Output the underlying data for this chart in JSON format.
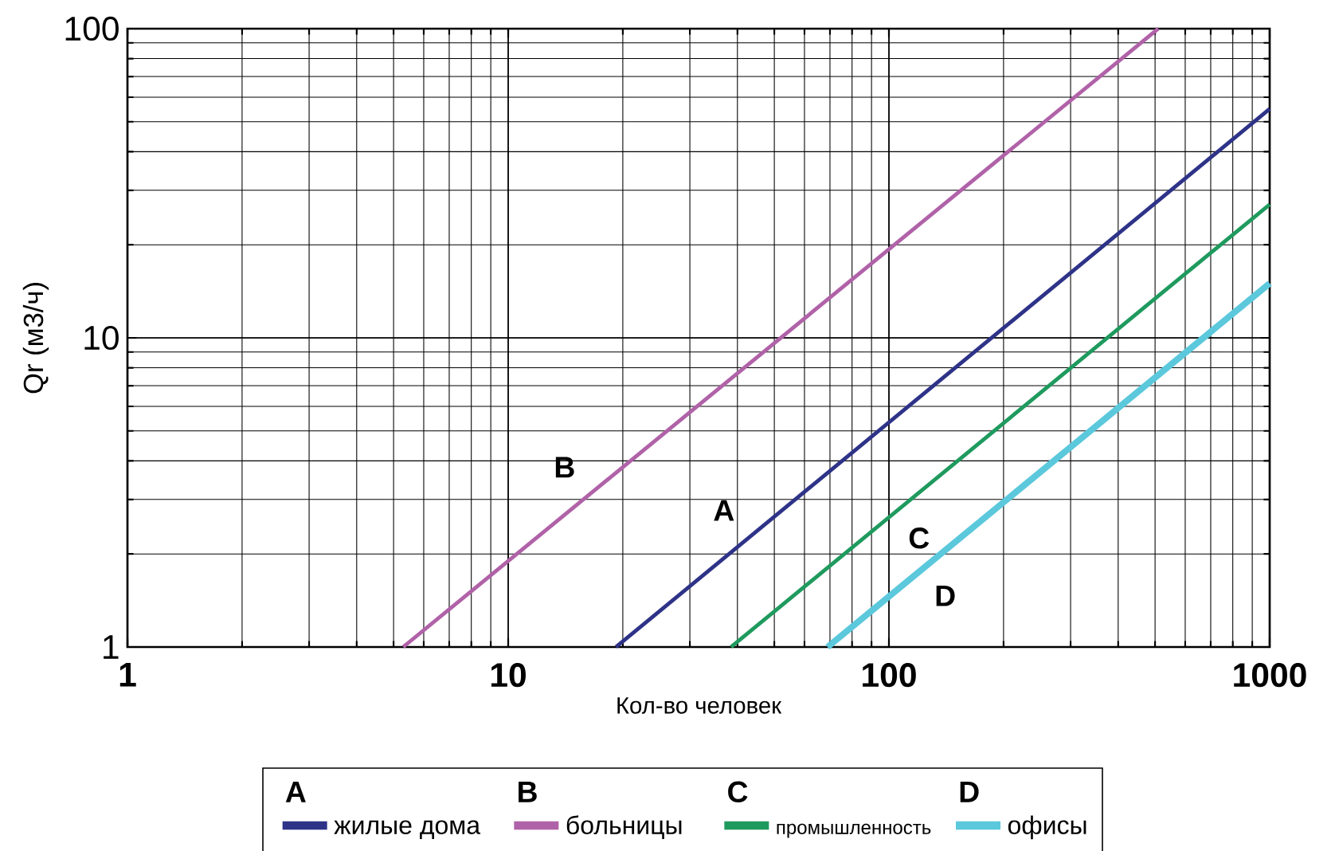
{
  "chart_data": {
    "type": "line",
    "xlabel": "Кол-во человек",
    "ylabel": "Qr (м3/ч)",
    "log": "xy",
    "xlim": [
      1,
      1000
    ],
    "ylim": [
      1,
      100
    ],
    "xticks": [
      1,
      10,
      100,
      1000
    ],
    "yticks": [
      1,
      10,
      100
    ],
    "grid": true,
    "legend": "bottom",
    "series": [
      {
        "name": "жилые дома",
        "color": "#2e3388",
        "x": [
          19.2,
          1000
        ],
        "values": [
          1,
          55
        ]
      },
      {
        "name": "больницы",
        "color": "#b062a8",
        "x": [
          5.3,
          510
        ],
        "values": [
          1,
          100
        ]
      },
      {
        "name": "промышленность",
        "color": "#1f9a5e",
        "x": [
          38.5,
          1000
        ],
        "values": [
          1,
          27
        ]
      },
      {
        "name": "офисы",
        "color": "#5bc8dc",
        "x": [
          69,
          1000
        ],
        "values": [
          1,
          15
        ]
      }
    ],
    "annotations": [
      "A",
      "B",
      "C",
      "D"
    ]
  }
}
